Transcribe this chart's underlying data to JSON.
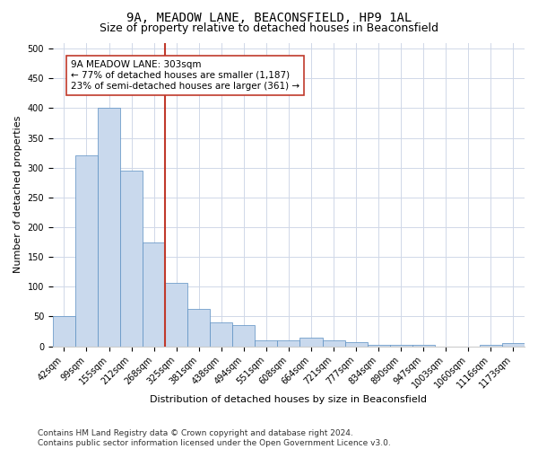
{
  "title": "9A, MEADOW LANE, BEACONSFIELD, HP9 1AL",
  "subtitle": "Size of property relative to detached houses in Beaconsfield",
  "xlabel": "Distribution of detached houses by size in Beaconsfield",
  "ylabel": "Number of detached properties",
  "categories": [
    "42sqm",
    "99sqm",
    "155sqm",
    "212sqm",
    "268sqm",
    "325sqm",
    "381sqm",
    "438sqm",
    "494sqm",
    "551sqm",
    "608sqm",
    "664sqm",
    "721sqm",
    "777sqm",
    "834sqm",
    "890sqm",
    "947sqm",
    "1003sqm",
    "1060sqm",
    "1116sqm",
    "1173sqm"
  ],
  "values": [
    50,
    320,
    400,
    295,
    175,
    107,
    63,
    40,
    35,
    10,
    10,
    15,
    10,
    7,
    3,
    2,
    2,
    0,
    0,
    2,
    5
  ],
  "bar_color": "#c9d9ed",
  "bar_edge_color": "#5a8fc2",
  "vline_color": "#c0392b",
  "annotation_text": "9A MEADOW LANE: 303sqm\n← 77% of detached houses are smaller (1,187)\n23% of semi-detached houses are larger (361) →",
  "annotation_box_color": "white",
  "annotation_box_edge_color": "#c0392b",
  "ylim": [
    0,
    510
  ],
  "yticks": [
    0,
    50,
    100,
    150,
    200,
    250,
    300,
    350,
    400,
    450,
    500
  ],
  "footnote": "Contains HM Land Registry data © Crown copyright and database right 2024.\nContains public sector information licensed under the Open Government Licence v3.0.",
  "background_color": "#ffffff",
  "grid_color": "#d0d8e8",
  "title_fontsize": 10,
  "subtitle_fontsize": 9,
  "label_fontsize": 8,
  "tick_fontsize": 7,
  "footnote_fontsize": 6.5,
  "annotation_fontsize": 7.5
}
